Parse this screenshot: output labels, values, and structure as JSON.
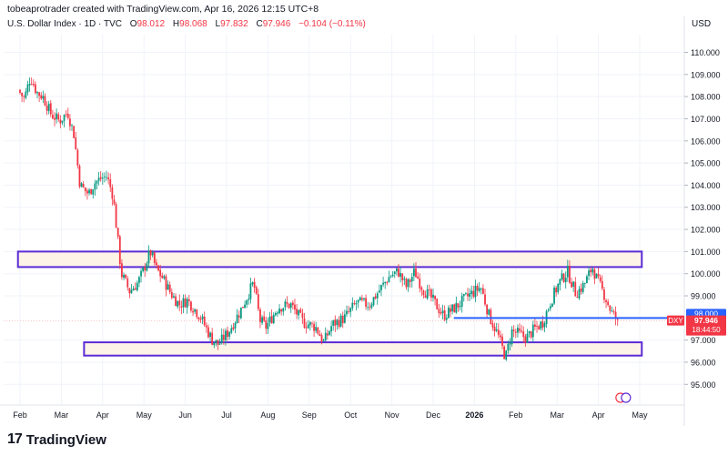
{
  "header": {
    "credit": "tobeaprotrader created with TradingView.com, Apr 16, 2026 12:15 UTC+8",
    "symbol_line": "U.S. Dollar Index · 1D · TVC",
    "ohlc": [
      {
        "label": "O",
        "value": "98.012"
      },
      {
        "label": "H",
        "value": "98.068"
      },
      {
        "label": "L",
        "value": "97.832"
      },
      {
        "label": "C",
        "value": "97.946"
      }
    ],
    "change": "−0.104 (−0.11%)",
    "currency": "USD"
  },
  "footer": {
    "logo_text": "TradingView",
    "logo_mark": "17"
  },
  "colors": {
    "up": "#089981",
    "down": "#f23645",
    "zone_border": "#5b2bd6",
    "zone_fill": "#fdf3e7",
    "support_line": "#2962ff",
    "grid": "#f0f3fa"
  },
  "chart_data": {
    "type": "candlestick",
    "title": "U.S. Dollar Index · 1D · TVC",
    "ylim": [
      94.5,
      111.0
    ],
    "y_ticks": [
      "110.000",
      "109.000",
      "108.000",
      "107.000",
      "106.000",
      "105.000",
      "104.000",
      "103.000",
      "102.000",
      "101.000",
      "100.000",
      "99.000",
      "97.000",
      "96.000",
      "95.000"
    ],
    "x_labels": [
      "Feb",
      "Mar",
      "Apr",
      "May",
      "Jun",
      "Jul",
      "Aug",
      "Sep",
      "Oct",
      "Nov",
      "Dec",
      "2026",
      "Feb",
      "Mar",
      "Apr",
      "May"
    ],
    "x_label_months": [
      0,
      1,
      2,
      3,
      4,
      5,
      6,
      7,
      8,
      9,
      10,
      11,
      12,
      13,
      14,
      15
    ],
    "price_path": [
      [
        0.0,
        108.3
      ],
      [
        0.15,
        107.9
      ],
      [
        0.3,
        108.9
      ],
      [
        0.45,
        108.2
      ],
      [
        0.6,
        108.0
      ],
      [
        0.8,
        107.2
      ],
      [
        1.0,
        106.9
      ],
      [
        1.2,
        107.3
      ],
      [
        1.35,
        106.3
      ],
      [
        1.5,
        104.0
      ],
      [
        1.7,
        103.6
      ],
      [
        1.85,
        104.1
      ],
      [
        2.0,
        104.3
      ],
      [
        2.15,
        104.4
      ],
      [
        2.3,
        103.5
      ],
      [
        2.5,
        100.0
      ],
      [
        2.7,
        99.2
      ],
      [
        2.9,
        99.6
      ],
      [
        3.0,
        100.0
      ],
      [
        3.2,
        101.0
      ],
      [
        3.35,
        100.2
      ],
      [
        3.5,
        99.8
      ],
      [
        3.7,
        99.1
      ],
      [
        3.9,
        98.6
      ],
      [
        4.1,
        98.8
      ],
      [
        4.4,
        98.1
      ],
      [
        4.7,
        97.0
      ],
      [
        4.85,
        96.8
      ],
      [
        5.1,
        97.4
      ],
      [
        5.4,
        98.4
      ],
      [
        5.7,
        99.6
      ],
      [
        5.85,
        97.9
      ],
      [
        6.0,
        97.6
      ],
      [
        6.3,
        98.5
      ],
      [
        6.6,
        98.6
      ],
      [
        6.9,
        97.8
      ],
      [
        7.2,
        97.6
      ],
      [
        7.4,
        96.9
      ],
      [
        7.6,
        97.7
      ],
      [
        7.9,
        98.0
      ],
      [
        8.2,
        98.7
      ],
      [
        8.5,
        98.6
      ],
      [
        8.8,
        99.4
      ],
      [
        9.0,
        99.9
      ],
      [
        9.2,
        100.1
      ],
      [
        9.4,
        99.4
      ],
      [
        9.6,
        100.1
      ],
      [
        9.8,
        99.3
      ],
      [
        10.0,
        98.9
      ],
      [
        10.3,
        98.1
      ],
      [
        10.6,
        98.5
      ],
      [
        10.9,
        99.0
      ],
      [
        11.2,
        99.4
      ],
      [
        11.4,
        98.1
      ],
      [
        11.6,
        97.3
      ],
      [
        11.8,
        96.2
      ],
      [
        11.95,
        97.4
      ],
      [
        12.1,
        97.3
      ],
      [
        12.3,
        97.1
      ],
      [
        12.5,
        97.5
      ],
      [
        12.7,
        97.8
      ],
      [
        12.9,
        98.8
      ],
      [
        13.1,
        99.6
      ],
      [
        13.3,
        100.1
      ],
      [
        13.5,
        99.1
      ],
      [
        13.7,
        99.5
      ],
      [
        13.9,
        100.3
      ],
      [
        14.0,
        99.8
      ],
      [
        14.2,
        99.0
      ],
      [
        14.35,
        98.3
      ],
      [
        14.5,
        97.9
      ]
    ],
    "upper_zone": {
      "top": 101.0,
      "bottom": 100.3,
      "start_month": -0.05,
      "end_month": 15.05
    },
    "lower_zone": {
      "top": 96.9,
      "bottom": 96.3,
      "start_month": 1.55,
      "end_month": 15.05
    },
    "support_line": {
      "value": 98.0,
      "start_month": 10.5
    },
    "last_price": {
      "value": 97.946,
      "label": "97.946",
      "countdown": "18:44:50",
      "symbol": "DXY"
    },
    "line_label": {
      "value": 98.0,
      "label": "98.000"
    }
  }
}
